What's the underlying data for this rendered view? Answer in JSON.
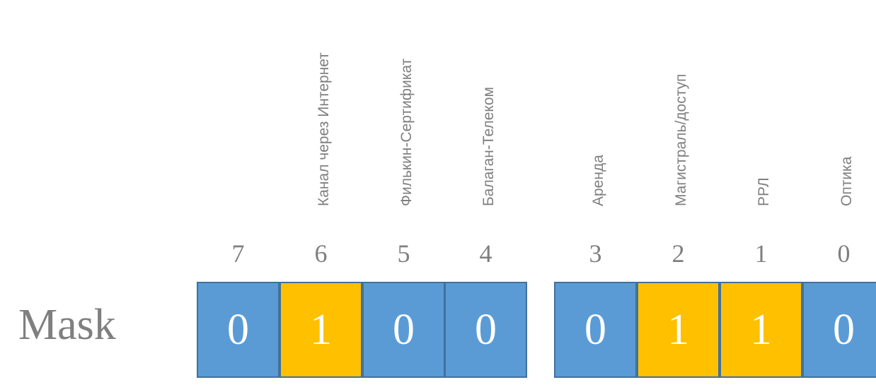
{
  "mask_label": "Mask",
  "colors": {
    "zero": "#5B9BD5",
    "one": "#FFC000",
    "border": "#41719C",
    "text": "#7f7f7f"
  },
  "bits": [
    {
      "index": "7",
      "value": "0",
      "label": ""
    },
    {
      "index": "6",
      "value": "1",
      "label": "Канал через Интернет"
    },
    {
      "index": "5",
      "value": "0",
      "label": "Филькин-Сертификат"
    },
    {
      "index": "4",
      "value": "0",
      "label": "Балаган-Телеком"
    },
    {
      "index": "3",
      "value": "0",
      "label": "Аренда"
    },
    {
      "index": "2",
      "value": "1",
      "label": "Магистраль/доступ"
    },
    {
      "index": "1",
      "value": "1",
      "label": "РРЛ"
    },
    {
      "index": "0",
      "value": "0",
      "label": "Оптика"
    }
  ]
}
